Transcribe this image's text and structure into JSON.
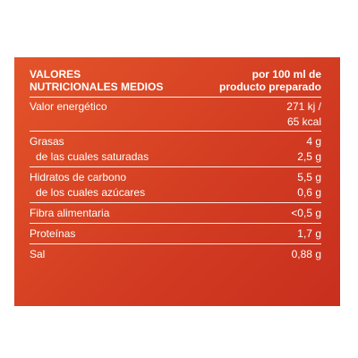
{
  "header": {
    "left_line1": "VALORES",
    "left_line2": "NUTRICIONALES MEDIOS",
    "right_line1": "por 100 ml de",
    "right_line2": "producto preparado"
  },
  "rows": {
    "energy": {
      "label": "Valor energético",
      "value_line1": "271 kj /",
      "value_line2": "65 kcal"
    },
    "fat": {
      "label": "Grasas",
      "value": "4 g"
    },
    "saturated": {
      "label": "de las cuales saturadas",
      "value": "2,5 g"
    },
    "carbs": {
      "label": "Hidratos de carbono",
      "value": "5,5 g"
    },
    "sugars": {
      "label": "de los cuales azúcares",
      "value": "0,6 g"
    },
    "fiber": {
      "label": "Fibra alimentaria",
      "value": "<0,5 g"
    },
    "protein": {
      "label": "Proteínas",
      "value": "1,7 g"
    },
    "salt": {
      "label": "Sal",
      "value": "0,88 g"
    }
  },
  "colors": {
    "panel": "#d9452a",
    "text": "#ffffff"
  }
}
